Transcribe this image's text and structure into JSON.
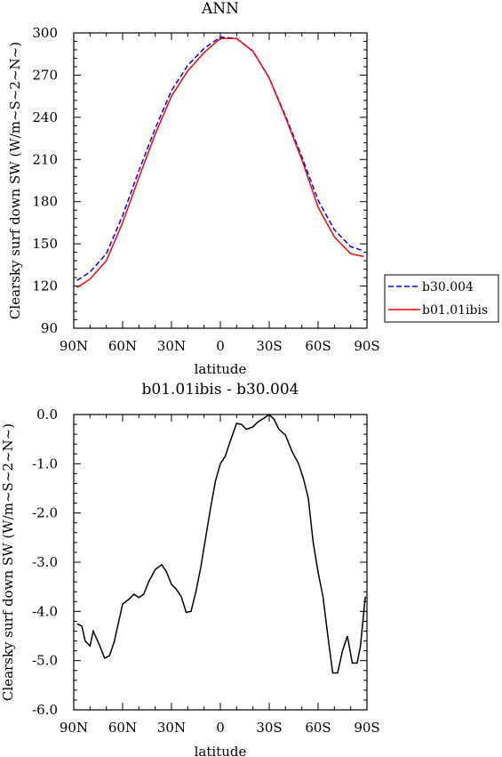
{
  "chart_data": [
    {
      "type": "line",
      "title": "ANN",
      "xlabel": "latitude",
      "ylabel": "Clearsky surf down SW (W/m~S~2~N~)",
      "xlim": [
        -90,
        90
      ],
      "ylim": [
        90,
        300
      ],
      "yticks": [
        "90",
        "120",
        "150",
        "180",
        "210",
        "240",
        "270",
        "300"
      ],
      "xticks": [
        "90N",
        "60N",
        "30N",
        "0",
        "30S",
        "60S",
        "90S"
      ],
      "legend_position": "right-middle",
      "series": [
        {
          "name": "b30.004",
          "color": "#0000ff",
          "dash": "dashed",
          "x": [
            -88,
            -80,
            -70,
            -60,
            -50,
            -40,
            -30,
            -20,
            -10,
            0,
            10,
            20,
            30,
            40,
            50,
            60,
            70,
            80,
            88
          ],
          "y": [
            124,
            130,
            143,
            170,
            202,
            232,
            259,
            277,
            289,
            297,
            296,
            287,
            268,
            241,
            212,
            181,
            160,
            148,
            145
          ]
        },
        {
          "name": "b01.01ibis",
          "color": "#ff0000",
          "dash": "solid",
          "x": [
            -88,
            -80,
            -70,
            -60,
            -50,
            -40,
            -30,
            -20,
            -10,
            0,
            10,
            20,
            30,
            40,
            50,
            60,
            70,
            80,
            88
          ],
          "y": [
            119,
            125,
            138,
            165,
            197,
            228,
            255,
            273,
            286,
            296,
            296,
            287,
            268,
            240,
            210,
            176,
            155,
            143,
            141
          ]
        }
      ]
    },
    {
      "type": "line",
      "title": "b01.01ibis - b30.004",
      "xlabel": "latitude",
      "ylabel": "Clearsky surf down SW (W/m~S~2~N~)",
      "xlim": [
        -90,
        90
      ],
      "ylim": [
        -6,
        0
      ],
      "yticks": [
        "0.0",
        "-1.0",
        "-2.0",
        "-3.0",
        "-4.0",
        "-5.0",
        "-6.0"
      ],
      "xticks": [
        "90N",
        "60N",
        "30N",
        "0",
        "30S",
        "60S",
        "90S"
      ],
      "series": [
        {
          "color": "#000000",
          "x": [
            -88,
            -85,
            -83,
            -80,
            -78,
            -74,
            -71,
            -68,
            -65,
            -60,
            -56,
            -53,
            -50,
            -47,
            -44,
            -40,
            -36,
            -33,
            -30,
            -27,
            -24,
            -21,
            -18,
            -15,
            -12,
            -9,
            -6,
            -3,
            0,
            3,
            6,
            10,
            13,
            16,
            20,
            23,
            27,
            30,
            33,
            36,
            40,
            44,
            48,
            51,
            54,
            57,
            60,
            63,
            66,
            69,
            72,
            75,
            78,
            81,
            84,
            86,
            89
          ],
          "y": [
            -4.25,
            -4.3,
            -4.6,
            -4.7,
            -4.4,
            -4.7,
            -4.95,
            -4.9,
            -4.6,
            -3.85,
            -3.75,
            -3.65,
            -3.72,
            -3.65,
            -3.4,
            -3.15,
            -3.05,
            -3.2,
            -3.45,
            -3.55,
            -3.7,
            -4.02,
            -4.0,
            -3.6,
            -3.1,
            -2.5,
            -1.9,
            -1.35,
            -1.0,
            -0.85,
            -0.55,
            -0.18,
            -0.2,
            -0.3,
            -0.25,
            -0.15,
            -0.07,
            0.0,
            -0.1,
            -0.3,
            -0.42,
            -0.75,
            -1.0,
            -1.3,
            -1.7,
            -2.6,
            -3.2,
            -3.7,
            -4.5,
            -5.25,
            -5.25,
            -4.8,
            -4.5,
            -5.05,
            -5.05,
            -4.7,
            -3.7
          ]
        }
      ]
    }
  ]
}
